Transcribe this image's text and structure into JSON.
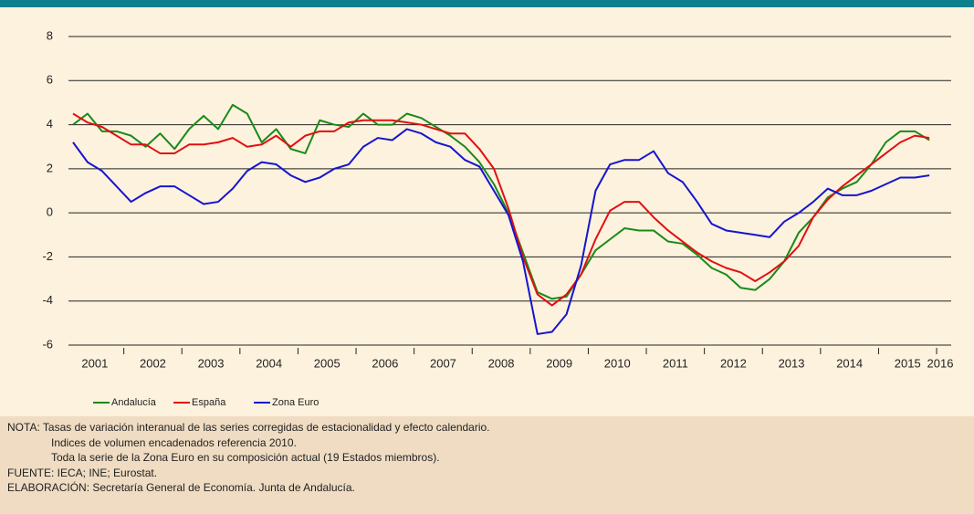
{
  "chart_data": {
    "type": "line",
    "x_labels": [
      "2001",
      "2002",
      "2003",
      "2004",
      "2005",
      "2006",
      "2007",
      "2008",
      "2009",
      "2010",
      "2011",
      "2012",
      "2013",
      "2014",
      "2015",
      "2016"
    ],
    "periods_per_label": 4,
    "series": [
      {
        "name": "Andalucía",
        "color": "#1a8a1a",
        "values": [
          4.0,
          4.5,
          3.7,
          3.7,
          3.5,
          3.0,
          3.6,
          2.9,
          3.8,
          4.4,
          3.8,
          4.9,
          4.5,
          3.2,
          3.8,
          2.9,
          2.7,
          4.2,
          4.0,
          3.9,
          4.5,
          4.0,
          4.0,
          4.5,
          4.3,
          3.9,
          3.5,
          3.0,
          2.3,
          1.3,
          0.0,
          -1.8,
          -3.6,
          -3.9,
          -3.8,
          -2.8,
          -1.7,
          -1.2,
          -0.7,
          -0.8,
          -0.8,
          -1.3,
          -1.4,
          -1.9,
          -2.5,
          -2.8,
          -3.4,
          -3.5,
          -3.0,
          -2.2,
          -0.9,
          -0.2,
          0.7,
          1.1,
          1.4,
          2.2,
          3.2,
          3.7,
          3.7,
          3.3
        ]
      },
      {
        "name": "España",
        "color": "#e01010",
        "values": [
          4.5,
          4.1,
          3.9,
          3.5,
          3.1,
          3.1,
          2.7,
          2.7,
          3.1,
          3.1,
          3.2,
          3.4,
          3.0,
          3.1,
          3.5,
          3.0,
          3.5,
          3.7,
          3.7,
          4.1,
          4.2,
          4.2,
          4.2,
          4.1,
          4.0,
          3.8,
          3.6,
          3.6,
          2.9,
          2.0,
          0.2,
          -2.0,
          -3.7,
          -4.2,
          -3.7,
          -2.8,
          -1.2,
          0.1,
          0.5,
          0.5,
          -0.2,
          -0.8,
          -1.3,
          -1.8,
          -2.2,
          -2.5,
          -2.7,
          -3.1,
          -2.7,
          -2.2,
          -1.5,
          -0.2,
          0.6,
          1.2,
          1.7,
          2.2,
          2.7,
          3.2,
          3.5,
          3.4
        ]
      },
      {
        "name": "Zona Euro",
        "color": "#1515d0",
        "values": [
          3.2,
          2.3,
          1.9,
          1.2,
          0.5,
          0.9,
          1.2,
          1.2,
          0.8,
          0.4,
          0.5,
          1.1,
          1.9,
          2.3,
          2.2,
          1.7,
          1.4,
          1.6,
          2.0,
          2.2,
          3.0,
          3.4,
          3.3,
          3.8,
          3.6,
          3.2,
          3.0,
          2.4,
          2.1,
          1.0,
          -0.1,
          -2.2,
          -5.5,
          -5.4,
          -4.6,
          -2.4,
          1.0,
          2.2,
          2.4,
          2.4,
          2.8,
          1.8,
          1.4,
          0.5,
          -0.5,
          -0.8,
          -0.9,
          -1.0,
          -1.1,
          -0.4,
          0.0,
          0.5,
          1.1,
          0.8,
          0.8,
          1.0,
          1.3,
          1.6,
          1.6,
          1.7
        ]
      }
    ],
    "ylim": [
      -6,
      8
    ],
    "yticks": [
      -6,
      -4,
      -2,
      0,
      2,
      4,
      6,
      8
    ],
    "grid": true
  },
  "notes": [
    "NOTA:  Tasas de variación interanual de las series corregidas de estacionalidad y efecto calendario.",
    "Indices de volumen encadenados referencia 2010.",
    "Toda la serie de la Zona Euro en su composición actual (19 Estados miembros).",
    "FUENTE: IECA; INE; Eurostat.",
    "ELABORACIÓN: Secretaría General de Economía. Junta de Andalucía."
  ]
}
